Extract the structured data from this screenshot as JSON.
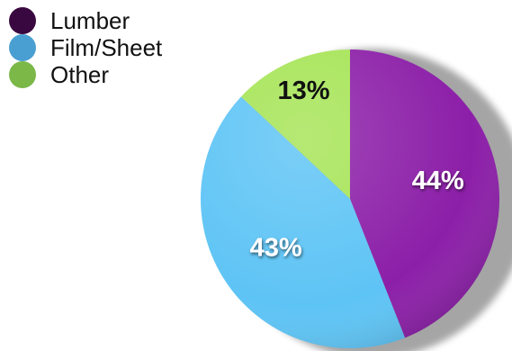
{
  "chart_data": {
    "type": "pie",
    "title": "",
    "slices": [
      {
        "label": "Lumber",
        "value": 44,
        "display": "44%",
        "color": "#8c1fa8",
        "legend_color": "#3a0840",
        "text_color": "#ffffff"
      },
      {
        "label": "Film/Sheet",
        "value": 43,
        "display": "43%",
        "color": "#5ec4f5",
        "legend_color": "#4a9fd2",
        "text_color": "#ffffff"
      },
      {
        "label": "Other",
        "value": 13,
        "display": "13%",
        "color": "#a6e456",
        "legend_color": "#7bb848",
        "text_color": "#111111"
      }
    ],
    "legend_position": "top-left"
  }
}
